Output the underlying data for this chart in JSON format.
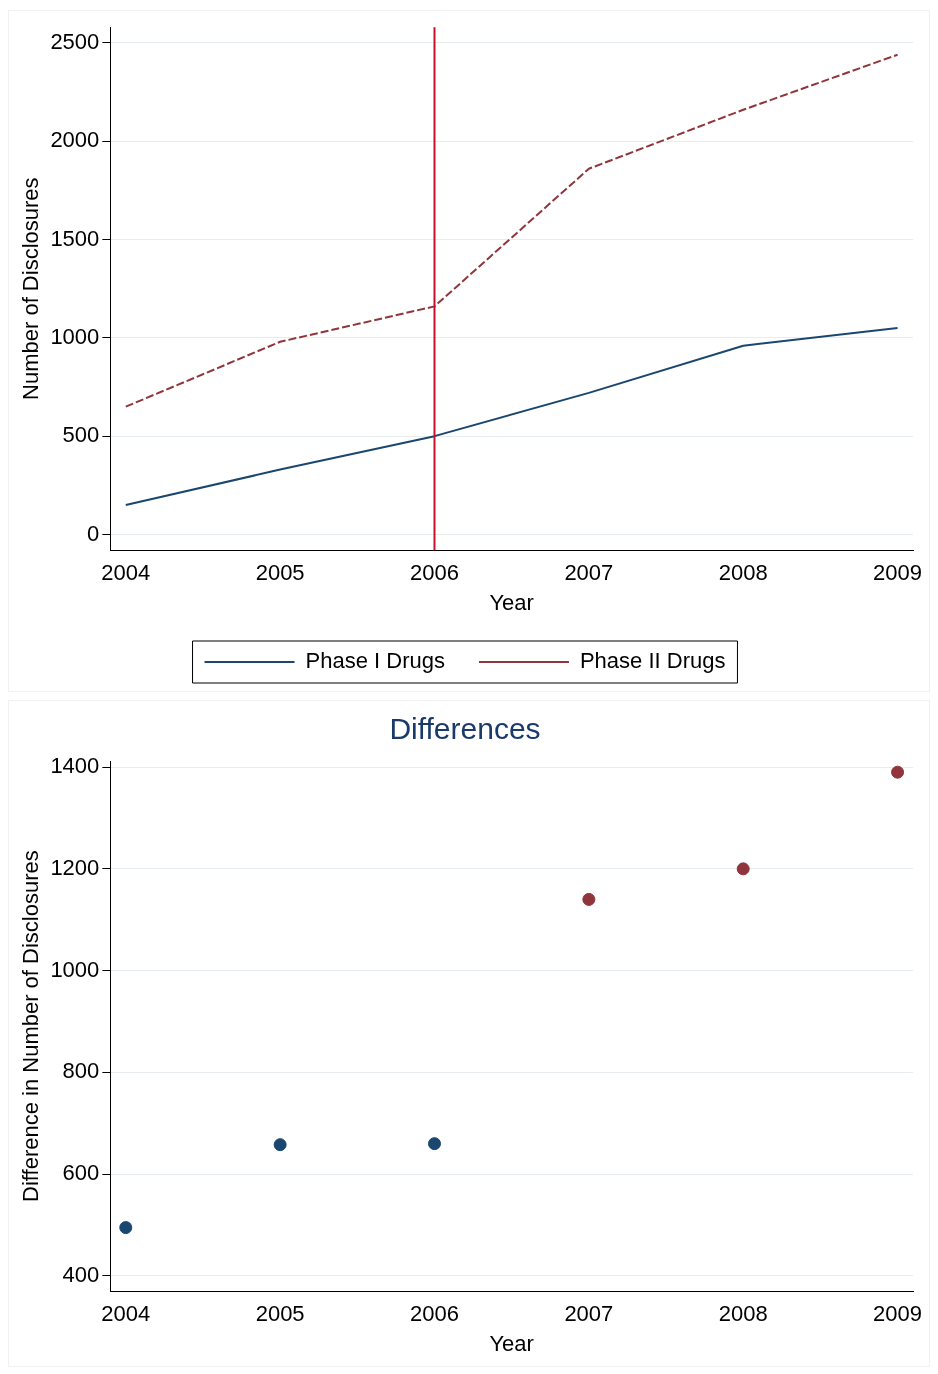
{
  "chart_data": [
    {
      "type": "line",
      "xlabel": "Year",
      "ylabel": "Number of Disclosures",
      "x": [
        2004,
        2005,
        2006,
        2007,
        2008,
        2009
      ],
      "series": [
        {
          "name": "Phase I Drugs",
          "color": "#1a476f",
          "line_style": "solid",
          "values": [
            150,
            330,
            500,
            720,
            960,
            1050
          ]
        },
        {
          "name": "Phase II Drugs",
          "color": "#90353b",
          "line_style": "dashed",
          "values": [
            650,
            980,
            1160,
            1860,
            2160,
            2440
          ]
        }
      ],
      "xlim": [
        2003.9,
        2009.1
      ],
      "xticks": [
        2004,
        2005,
        2006,
        2007,
        2008,
        2009
      ],
      "ylim": [
        -80,
        2580
      ],
      "yticks": [
        0,
        500,
        1000,
        1500,
        2000,
        2500
      ],
      "grid": "y",
      "legend": "bottom",
      "marker": "none",
      "ref_lines": [
        {
          "axis": "x",
          "value": 2006,
          "color": "#c8102e"
        }
      ]
    },
    {
      "type": "scatter",
      "title": "Differences",
      "xlabel": "Year",
      "ylabel": "Difference in Number of Disclosures",
      "x": [
        2004,
        2005,
        2006,
        2007,
        2008,
        2009
      ],
      "values": [
        495,
        658,
        660,
        1140,
        1200,
        1390
      ],
      "colors": [
        "#1a476f",
        "#1a476f",
        "#1a476f",
        "#90353b",
        "#90353b",
        "#90353b"
      ],
      "xlim": [
        2003.9,
        2009.1
      ],
      "xticks": [
        2004,
        2005,
        2006,
        2007,
        2008,
        2009
      ],
      "ylim": [
        370,
        1412
      ],
      "yticks": [
        400,
        600,
        800,
        1000,
        1200,
        1400
      ],
      "grid": "y",
      "legend": false,
      "marker": "circle"
    }
  ]
}
